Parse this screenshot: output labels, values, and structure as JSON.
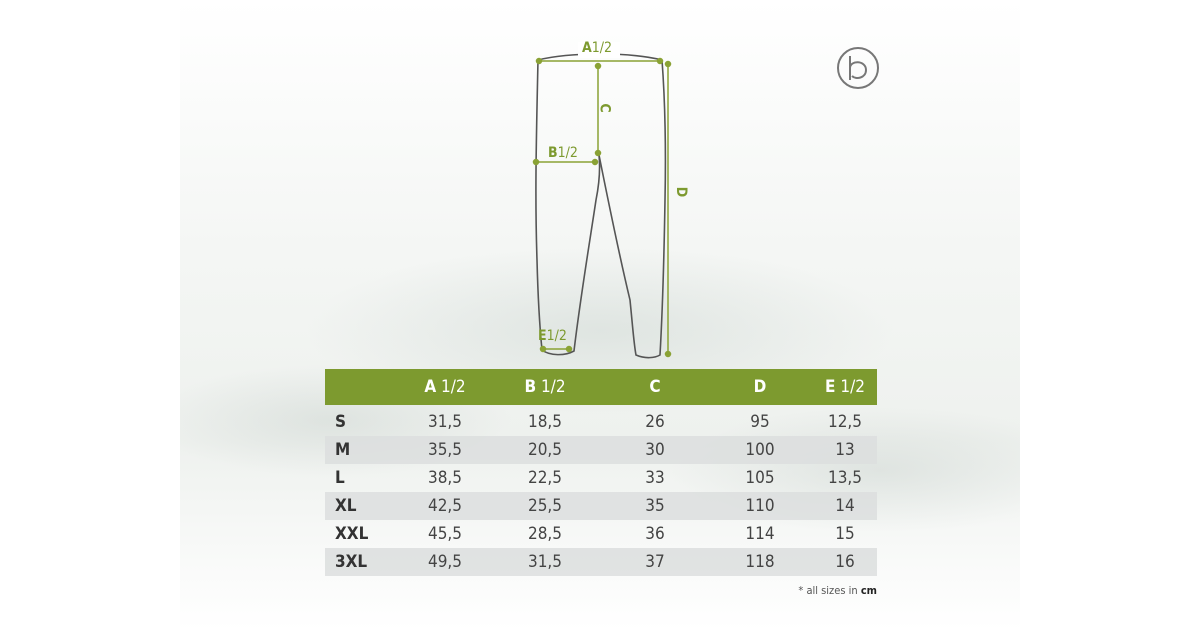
{
  "diagram": {
    "labels": {
      "a": {
        "letter": "A",
        "fraction": "1/2"
      },
      "b": {
        "letter": "B",
        "fraction": "1/2"
      },
      "c": "C",
      "d": "D",
      "e": {
        "letter": "E",
        "fraction": "1/2"
      }
    }
  },
  "table": {
    "header": [
      {
        "letter": "A",
        "fraction": " 1/2"
      },
      {
        "letter": "B",
        "fraction": " 1/2"
      },
      {
        "letter": "C",
        "fraction": ""
      },
      {
        "letter": "D",
        "fraction": ""
      },
      {
        "letter": "E",
        "fraction": " 1/2"
      }
    ],
    "rows": [
      {
        "size": "S",
        "values": [
          "31,5",
          "18,5",
          "26",
          "95",
          "12,5"
        ]
      },
      {
        "size": "M",
        "values": [
          "35,5",
          "20,5",
          "30",
          "100",
          "13"
        ]
      },
      {
        "size": "L",
        "values": [
          "38,5",
          "22,5",
          "33",
          "105",
          "13,5"
        ]
      },
      {
        "size": "XL",
        "values": [
          "42,5",
          "25,5",
          "35",
          "110",
          "14"
        ]
      },
      {
        "size": "XXL",
        "values": [
          "45,5",
          "28,5",
          "36",
          "114",
          "15"
        ]
      },
      {
        "size": "3XL",
        "values": [
          "49,5",
          "31,5",
          "37",
          "118",
          "16"
        ]
      }
    ]
  },
  "note": {
    "prefix": "* all sizes in ",
    "unit": "cm"
  },
  "colors": {
    "accent": "#7d9a2f",
    "alt_row": "#dcdede",
    "outline": "#555555"
  },
  "logo": {
    "icon": "brand-circle-logo"
  }
}
